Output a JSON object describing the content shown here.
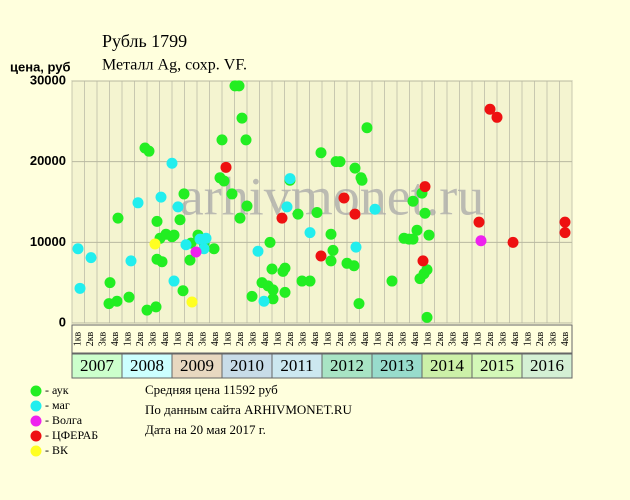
{
  "chart_data": {
    "type": "scatter",
    "title": "Рубль 1799",
    "subtitle": "Металл Ag, сохр. VF.",
    "y_label": "цена, руб",
    "watermark": "arhivmonet.ru",
    "xlim": [
      2007,
      2017
    ],
    "ylim": [
      0,
      30000
    ],
    "yticks": [
      0,
      10000,
      20000,
      30000
    ],
    "grid": true,
    "years": [
      "2007",
      "2008",
      "2009",
      "2010",
      "2011",
      "2012",
      "2013",
      "2014",
      "2015",
      "2016"
    ],
    "year_colors": [
      "#ccffcc",
      "#ccffff",
      "#e8d8c0",
      "#c8dce8",
      "#cce8f0",
      "#a8e4c4",
      "#98dccc",
      "#ccf0a8",
      "#d4f8b8",
      "#d4f0d4"
    ],
    "quarters": [
      "1кв",
      "2кв",
      "3кв",
      "4кв"
    ],
    "series": [
      {
        "name": "- аук",
        "color": "#22ee22",
        "x": [
          2007.76,
          2007.74,
          2007.9,
          2007.92,
          2008.14,
          2008.46,
          2008.54,
          2008.5,
          2008.68,
          2008.7,
          2008.7,
          2008.8,
          2008.76,
          2008.88,
          2009.0,
          2009.04,
          2009.16,
          2009.24,
          2009.22,
          2009.36,
          2009.38,
          2009.52,
          2009.64,
          2009.84,
          2009.96,
          2010.0,
          2010.04,
          2010.2,
          2010.26,
          2010.34,
          2010.36,
          2010.4,
          2010.48,
          2010.5,
          2010.6,
          2010.8,
          2010.92,
          2010.96,
          2011.0,
          2011.02,
          2011.02,
          2011.22,
          2011.26,
          2011.26,
          2011.36,
          2011.52,
          2011.6,
          2011.76,
          2011.9,
          2011.98,
          2012.18,
          2012.22,
          2012.18,
          2012.28,
          2012.36,
          2012.5,
          2012.64,
          2012.66,
          2012.74,
          2012.78,
          2012.8,
          2012.9,
          2013.4,
          2013.64,
          2013.74,
          2013.82,
          2013.9,
          2013.82,
          2014.0,
          2014.06,
          2013.96,
          2014.04,
          2014.1,
          2014.14,
          2014.1
        ],
        "values": [
          5000,
          2400,
          2700,
          13000,
          3200,
          21700,
          21300,
          1600,
          2000,
          12600,
          7900,
          7600,
          10500,
          11000,
          10700,
          10900,
          12800,
          16000,
          4000,
          7800,
          9900,
          10900,
          9900,
          9200,
          18000,
          22700,
          17600,
          16000,
          29400,
          29400,
          13000,
          25400,
          22700,
          14500,
          3300,
          5000,
          4600,
          10000,
          6700,
          4100,
          3000,
          6400,
          6800,
          3800,
          17700,
          13500,
          5200,
          5200,
          13700,
          21100,
          11000,
          9000,
          7700,
          20000,
          20000,
          7400,
          7100,
          19200,
          2400,
          18000,
          17700,
          24200,
          5200,
          10500,
          10400,
          15100,
          11500,
          10400,
          16100,
          13600,
          5500,
          6100,
          6600,
          10900,
          700
        ]
      },
      {
        "name": "- маг",
        "color": "#22eeee",
        "x": [
          2007.12,
          2007.16,
          2007.38,
          2008.18,
          2008.32,
          2008.78,
          2009.0,
          2009.04,
          2009.12,
          2009.28,
          2009.56,
          2009.68,
          2009.64,
          2010.72,
          2010.84,
          2011.3,
          2011.36,
          2011.76,
          2012.68,
          2013.06
        ],
        "values": [
          9200,
          4300,
          8100,
          7700,
          14900,
          15600,
          19800,
          5200,
          14400,
          9700,
          10400,
          10500,
          9200,
          8900,
          2700,
          14400,
          17900,
          11200,
          9400,
          14100
        ]
      },
      {
        "name": "- Волга",
        "color": "#ee22ee",
        "x": [
          2009.48,
          2015.18
        ],
        "values": [
          8800,
          10200
        ]
      },
      {
        "name": "- ЦФЕРАБ",
        "color": "#ee1111",
        "x": [
          2010.08,
          2011.2,
          2011.98,
          2012.44,
          2012.66,
          2014.02,
          2014.06,
          2015.14,
          2015.36,
          2015.5,
          2015.82,
          2016.86,
          2016.86
        ],
        "values": [
          19300,
          13000,
          8300,
          15500,
          13500,
          7700,
          16900,
          12500,
          26500,
          25500,
          10000,
          12500,
          11200
        ]
      },
      {
        "name": "- ВК",
        "color": "#ffff22",
        "x": [
          2008.66,
          2009.4
        ],
        "values": [
          9800,
          2600
        ]
      }
    ],
    "notes": [
      "Средняя цена 11592 руб",
      "По данным сайта ARHIVMONET.RU",
      "Дата на 20 мая 2017 г."
    ]
  }
}
